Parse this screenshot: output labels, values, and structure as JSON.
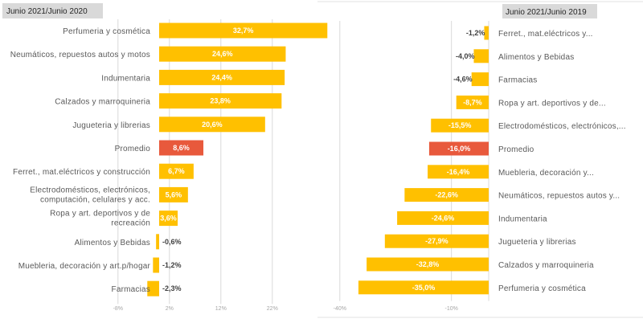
{
  "colors": {
    "bar": "#ffc000",
    "highlight": "#e8593c",
    "grid": "#d9d9d9",
    "label_box": "#d9d9d9"
  },
  "chart_data": [
    {
      "type": "bar",
      "orientation": "horizontal",
      "title": "Junio 2021/Junio 2020",
      "xlabel": "",
      "ylabel": "",
      "xlim": [
        -8,
        27
      ],
      "ticks": [
        -8,
        2,
        12,
        22
      ],
      "tick_labels": [
        "-8%",
        "2%",
        "12%",
        "22%"
      ],
      "grid": true,
      "categories": [
        "Perfumeria y cosmética",
        "Neumáticos, repuestos autos y motos",
        "Indumentaria",
        "Calzados y marroquineria",
        "Jugueteria y librerias",
        "Promedio",
        "Ferret., mat.eléctricos y construcción",
        "Electrodomésticos, electrónicos, computación, celulares y acc.",
        "Ropa y art. deportivos y de recreación",
        "Alimentos y Bebidas",
        "Muebleria, decoración y art.p/hogar",
        "Farmacias"
      ],
      "category_lines": [
        [
          "Perfumeria y cosmética"
        ],
        [
          "Neumáticos, repuestos autos y motos"
        ],
        [
          "Indumentaria"
        ],
        [
          "Calzados y marroquineria"
        ],
        [
          "Jugueteria y librerias"
        ],
        [
          "Promedio"
        ],
        [
          "Ferret., mat.eléctricos y construcción"
        ],
        [
          "Electrodomésticos, electrónicos,",
          "computación, celulares y acc."
        ],
        [
          "Ropa y art. deportivos y de",
          "recreación"
        ],
        [
          "Alimentos y Bebidas"
        ],
        [
          "Muebleria, decoración y art.p/hogar"
        ],
        [
          "Farmacias"
        ]
      ],
      "values": [
        32.7,
        24.6,
        24.4,
        23.8,
        20.6,
        8.6,
        6.7,
        5.6,
        3.6,
        -0.6,
        -1.2,
        -2.3
      ],
      "value_labels": [
        "32,7%",
        "24,6%",
        "24,4%",
        "23,8%",
        "20,6%",
        "8,6%",
        "6,7%",
        "5,6%",
        "3,6%",
        "-0,6%",
        "-1,2%",
        "-2,3%"
      ],
      "highlight": "Promedio"
    },
    {
      "type": "bar",
      "orientation": "horizontal",
      "title": "Junio 2021/Junio 2019",
      "xlabel": "",
      "ylabel": "",
      "xlim": [
        -40,
        0
      ],
      "ticks": [
        -40,
        -10
      ],
      "tick_labels": [
        "-40%",
        "-10%"
      ],
      "grid": true,
      "categories": [
        "Ferret., mat.eléctricos y...",
        "Alimentos y Bebidas",
        "Farmacias",
        "Ropa y art. deportivos y de...",
        "Electrodomésticos, electrónicos,...",
        "Promedio",
        "Muebleria, decoración y...",
        "Neumáticos, repuestos autos y...",
        "Indumentaria",
        "Jugueteria y librerias",
        "Calzados y marroquineria",
        "Perfumeria y cosmética"
      ],
      "values": [
        -1.2,
        -4.0,
        -4.6,
        -8.7,
        -15.5,
        -16.0,
        -16.4,
        -22.6,
        -24.6,
        -27.9,
        -32.8,
        -35.0
      ],
      "value_labels": [
        "-1,2%",
        "-4,0%",
        "-4,6%",
        "-8,7%",
        "-15,5%",
        "-16,0%",
        "-16,4%",
        "-22,6%",
        "-24,6%",
        "-27,9%",
        "-32,8%",
        "-35,0%"
      ],
      "highlight": "Promedio"
    }
  ]
}
